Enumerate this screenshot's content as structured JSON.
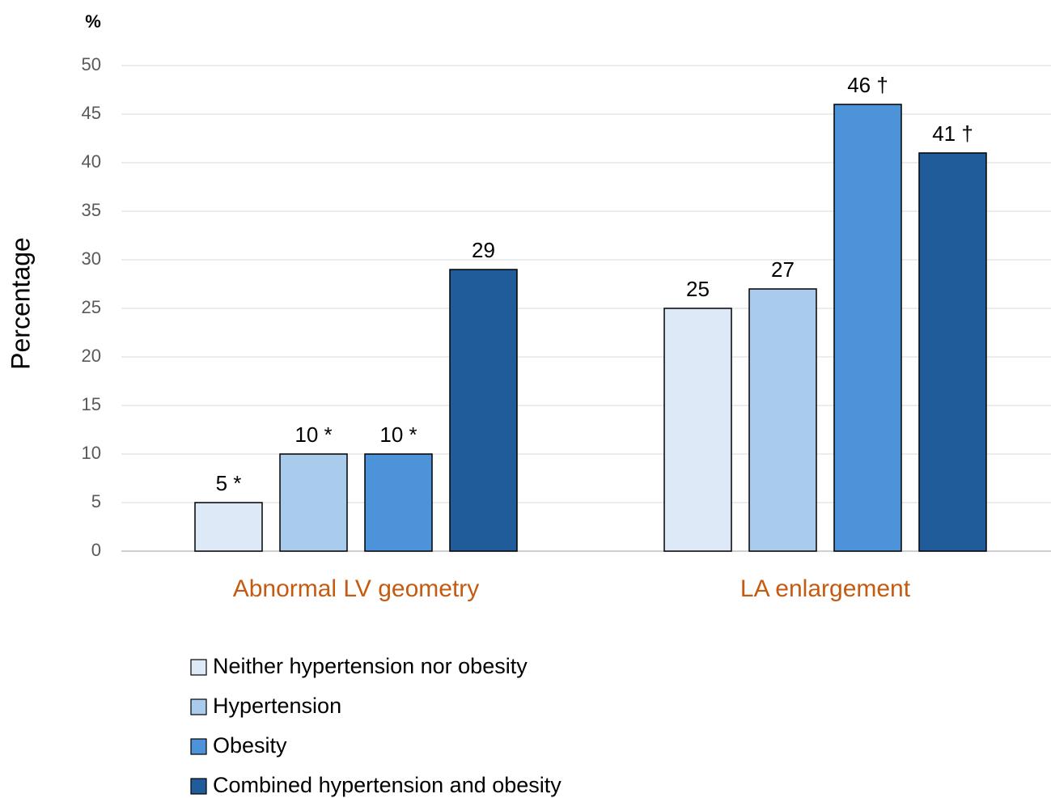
{
  "chart_data": {
    "type": "bar",
    "y_unit": "%",
    "y_label": "Percentage",
    "categories": [
      "Abnormal LV geometry",
      "LA enlargement"
    ],
    "series": [
      {
        "name": "Neither hypertension nor obesity",
        "color": "#dde9f6",
        "values": [
          5,
          25
        ],
        "value_labels": [
          "5 *",
          "25"
        ]
      },
      {
        "name": "Hypertension",
        "color": "#a9cbec",
        "values": [
          10,
          27
        ],
        "value_labels": [
          "10 *",
          "27"
        ]
      },
      {
        "name": "Obesity",
        "color": "#4d93d9",
        "values": [
          10,
          46
        ],
        "value_labels": [
          "10 *",
          "46 †"
        ]
      },
      {
        "name": "Combined hypertension and obesity",
        "color": "#1f5c99",
        "values": [
          29,
          41
        ],
        "value_labels": [
          "29",
          "41 †"
        ]
      }
    ],
    "ylim": [
      0,
      50
    ],
    "yticks": [
      0,
      5,
      10,
      15,
      20,
      25,
      30,
      35,
      40,
      45,
      50
    ],
    "grid": true
  }
}
